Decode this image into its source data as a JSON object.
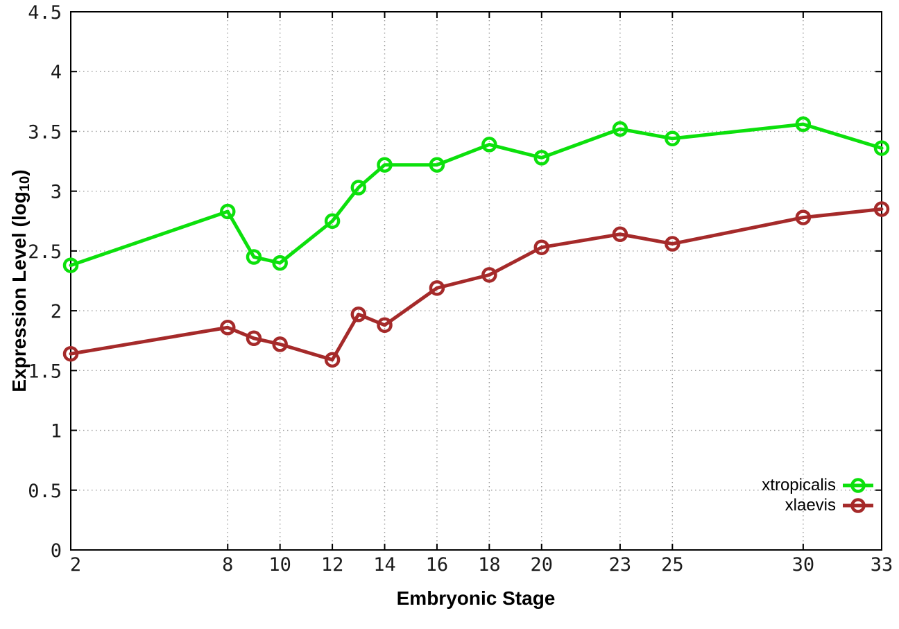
{
  "figure": {
    "background": "#ffffff",
    "border_color": "#000000",
    "grid_color": "#9c9c9c",
    "tick_label_color": "#1a1a1a",
    "ylabel_main": "Expression Level (log",
    "ylabel_sub": "10",
    "ylabel_close": ")"
  },
  "chart_data": {
    "type": "line",
    "title": "",
    "xlabel": "Embryonic Stage",
    "ylabel": "Expression Level (log10)",
    "xlim": [
      2,
      33
    ],
    "ylim": [
      0,
      4.5
    ],
    "grid": true,
    "legend_position": "bottom-right",
    "xticks": [
      2,
      8,
      10,
      12,
      14,
      16,
      18,
      20,
      23,
      25,
      30,
      33
    ],
    "yticks": [
      0,
      0.5,
      1,
      1.5,
      2,
      2.5,
      3,
      3.5,
      4,
      4.5
    ],
    "x": [
      2,
      8,
      9,
      10,
      12,
      13,
      14,
      16,
      18,
      20,
      23,
      25,
      30,
      33
    ],
    "series": [
      {
        "name": "xtropicalis",
        "color": "#0ce00c",
        "values": [
          2.38,
          2.83,
          2.45,
          2.4,
          2.75,
          3.03,
          3.22,
          3.22,
          3.39,
          3.28,
          3.52,
          3.44,
          3.56,
          3.36
        ]
      },
      {
        "name": "xlaevis",
        "color": "#a52a2a",
        "values": [
          1.64,
          1.86,
          1.77,
          1.72,
          1.59,
          1.97,
          1.88,
          2.19,
          2.3,
          2.53,
          2.64,
          2.56,
          2.78,
          2.85
        ]
      }
    ]
  }
}
